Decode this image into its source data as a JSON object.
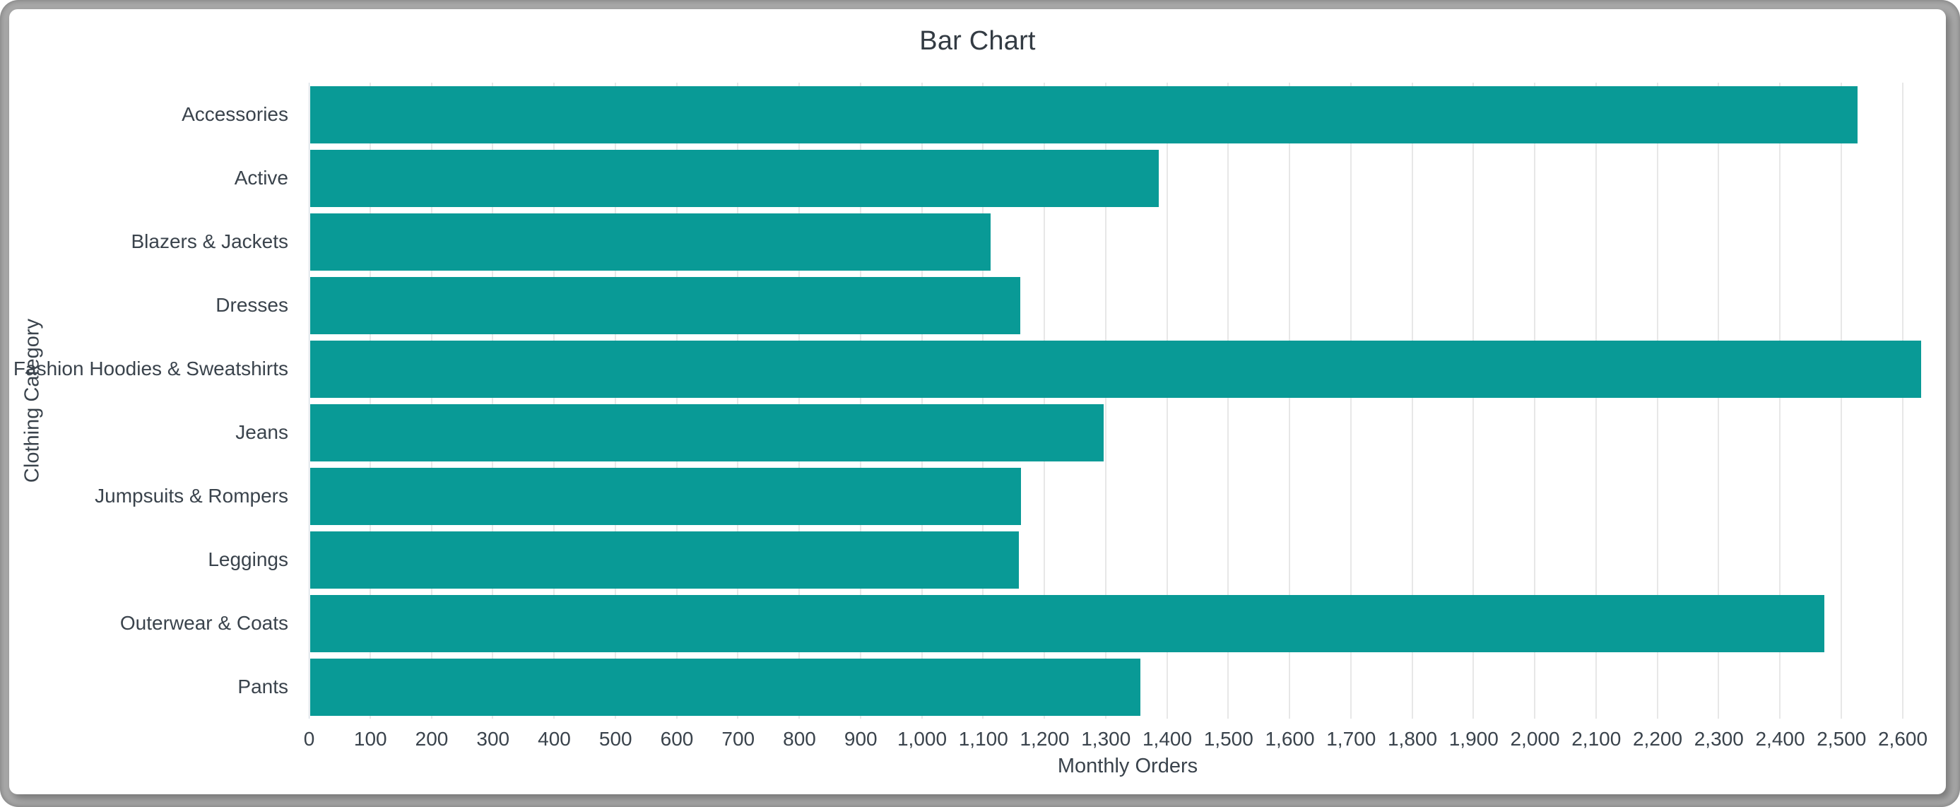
{
  "chart_data": {
    "type": "bar",
    "orientation": "horizontal",
    "title": "Bar Chart",
    "xlabel": "Monthly Orders",
    "ylabel": "Clothing Category",
    "categories": [
      "Accessories",
      "Active",
      "Blazers & Jackets",
      "Dresses",
      "Fashion Hoodies & Sweatshirts",
      "Jeans",
      "Jumpsuits & Rompers",
      "Leggings",
      "Outerwear & Coats",
      "Pants"
    ],
    "values": [
      2525,
      1385,
      1110,
      1158,
      2628,
      1295,
      1160,
      1156,
      2470,
      1355
    ],
    "xlim": [
      0,
      2600
    ],
    "xtick_step": 100,
    "xtick_labels": [
      "0",
      "100",
      "200",
      "300",
      "400",
      "500",
      "600",
      "700",
      "800",
      "900",
      "1,000",
      "1,100",
      "1,200",
      "1,300",
      "1,400",
      "1,500",
      "1,600",
      "1,700",
      "1,800",
      "1,900",
      "2,000",
      "2,100",
      "2,200",
      "2,300",
      "2,400",
      "2,500",
      "2,600"
    ],
    "grid": true,
    "legend": "none",
    "bar_color": "#099a96"
  }
}
